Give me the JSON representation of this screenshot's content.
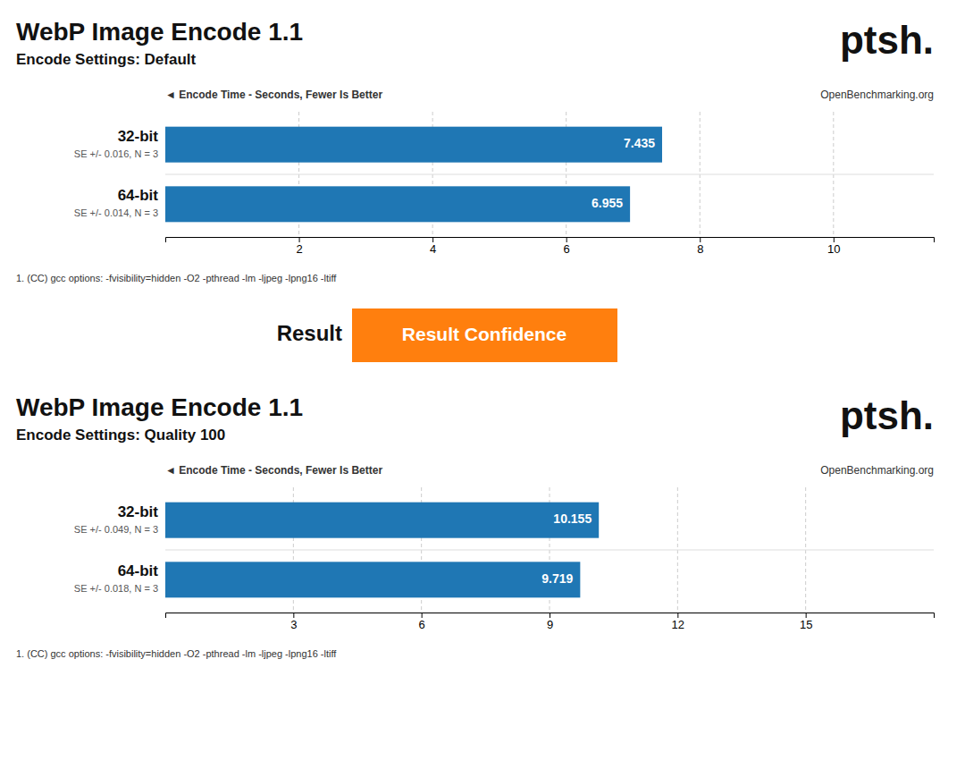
{
  "chart_data": [
    {
      "type": "bar",
      "orientation": "horizontal",
      "title": "WebP Image Encode 1.1",
      "subtitle": "Encode Settings: Default",
      "xlabel": "◄ Encode Time - Seconds, Fewer Is Better",
      "categories": [
        "32-bit",
        "64-bit"
      ],
      "values": [
        7.435,
        6.955
      ],
      "bar_notes": [
        "SE +/- 0.016, N = 3",
        "SE +/- 0.014, N = 3"
      ],
      "xlim": [
        0,
        11.5
      ],
      "xticks": [
        2,
        4,
        6,
        8,
        10
      ],
      "grid": true,
      "data_labels": true,
      "annotations": [
        "ptsh.",
        "OpenBenchmarking.org",
        "1. (CC) gcc options: -fvisibility=hidden -O2 -pthread -lm -ljpeg -lpng16 -ltiff",
        "Result",
        "Result Confidence"
      ]
    },
    {
      "type": "bar",
      "orientation": "horizontal",
      "title": "WebP Image Encode 1.1",
      "subtitle": "Encode Settings: Quality 100",
      "xlabel": "◄ Encode Time - Seconds, Fewer Is Better",
      "categories": [
        "32-bit",
        "64-bit"
      ],
      "values": [
        10.155,
        9.719
      ],
      "bar_notes": [
        "SE +/- 0.049, N = 3",
        "SE +/- 0.018, N = 3"
      ],
      "xlim": [
        0,
        18
      ],
      "xticks": [
        3,
        6,
        9,
        12,
        15
      ],
      "grid": true,
      "data_labels": true,
      "annotations": [
        "ptsh.",
        "OpenBenchmarking.org",
        "1. (CC) gcc options: -fvisibility=hidden -O2 -pthread -lm -ljpeg -lpng16 -ltiff"
      ]
    }
  ]
}
